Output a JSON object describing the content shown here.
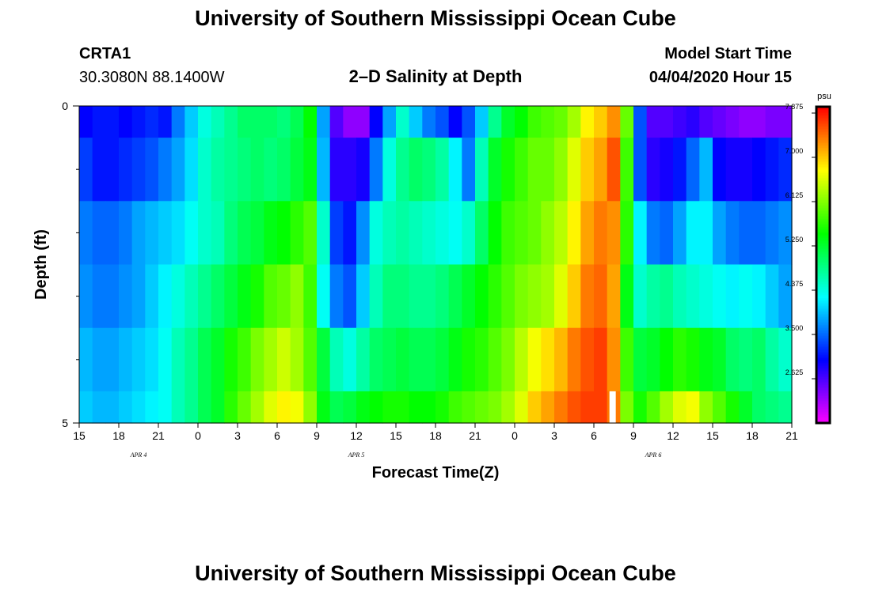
{
  "title": "University of Southern Mississippi Ocean Cube",
  "footer_title": "University of Southern Mississippi Ocean Cube",
  "station": {
    "id": "CRTA1",
    "location": "30.3080N 88.1400W"
  },
  "subtitle": "2–D Salinity at Depth",
  "model": {
    "label": "Model Start Time",
    "value": "04/04/2020 Hour 15"
  },
  "chart_data": {
    "type": "heatmap",
    "title": "2–D Salinity at Depth",
    "xlabel": "Forecast Time(Z)",
    "ylabel": "Depth (ft)",
    "y_range": [
      0,
      5
    ],
    "y_tick_labels": [
      "0",
      "5"
    ],
    "x_range_hours": [
      0,
      54
    ],
    "x_ticks": [
      {
        "h": 0,
        "label": "15"
      },
      {
        "h": 3,
        "label": "18"
      },
      {
        "h": 6,
        "label": "21"
      },
      {
        "h": 9,
        "label": "0"
      },
      {
        "h": 12,
        "label": "3"
      },
      {
        "h": 15,
        "label": "6"
      },
      {
        "h": 18,
        "label": "9"
      },
      {
        "h": 21,
        "label": "12"
      },
      {
        "h": 24,
        "label": "15"
      },
      {
        "h": 27,
        "label": "18"
      },
      {
        "h": 30,
        "label": "21"
      },
      {
        "h": 33,
        "label": "0"
      },
      {
        "h": 36,
        "label": "3"
      },
      {
        "h": 39,
        "label": "6"
      },
      {
        "h": 42,
        "label": "9"
      },
      {
        "h": 45,
        "label": "12"
      },
      {
        "h": 48,
        "label": "15"
      },
      {
        "h": 51,
        "label": "18"
      },
      {
        "h": 54,
        "label": "21"
      }
    ],
    "date_labels": [
      {
        "h": 4.5,
        "label": "APR 4"
      },
      {
        "h": 21,
        "label": "APR 5"
      },
      {
        "h": 43.5,
        "label": "APR 6"
      }
    ],
    "depth_layers": [
      {
        "top": 0.0,
        "bottom": 0.5
      },
      {
        "top": 0.5,
        "bottom": 1.5
      },
      {
        "top": 1.5,
        "bottom": 2.5
      },
      {
        "top": 2.5,
        "bottom": 3.5
      },
      {
        "top": 3.5,
        "bottom": 4.5
      },
      {
        "top": 4.5,
        "bottom": 5.0
      }
    ],
    "time_hours": [
      0,
      1,
      2,
      3,
      4,
      5,
      6,
      7,
      8,
      9,
      10,
      11,
      12,
      13,
      14,
      15,
      16,
      17,
      18,
      19,
      20,
      21,
      22,
      23,
      24,
      25,
      26,
      27,
      28,
      29,
      30,
      31,
      32,
      33,
      34,
      35,
      36,
      37,
      38,
      39,
      40,
      41,
      42,
      43,
      44,
      45,
      46,
      47,
      48,
      49,
      50,
      51,
      52,
      53
    ],
    "salinity": [
      [
        3.0,
        3.1,
        3.1,
        3.0,
        3.1,
        3.2,
        3.1,
        3.6,
        4.0,
        4.4,
        4.6,
        4.8,
        5.0,
        5.0,
        5.0,
        4.9,
        5.1,
        5.5,
        3.8,
        2.6,
        2.3,
        2.3,
        3.0,
        3.8,
        4.5,
        4.0,
        3.6,
        3.4,
        3.0,
        3.4,
        4.0,
        4.8,
        5.3,
        5.5,
        5.8,
        5.9,
        6.0,
        6.3,
        6.8,
        7.0,
        7.3,
        6.0,
        3.4,
        2.6,
        2.6,
        2.7,
        2.8,
        2.6,
        2.5,
        2.4,
        2.3,
        2.3,
        2.4,
        2.4
      ],
      [
        3.3,
        3.1,
        3.1,
        3.2,
        3.3,
        3.4,
        3.6,
        3.8,
        4.1,
        4.5,
        4.7,
        4.8,
        4.9,
        5.0,
        4.9,
        5.0,
        5.2,
        5.4,
        3.9,
        2.8,
        2.8,
        2.9,
        3.6,
        4.4,
        4.8,
        5.0,
        4.9,
        4.7,
        4.2,
        3.6,
        4.6,
        5.3,
        5.6,
        5.8,
        6.0,
        6.0,
        6.2,
        6.6,
        7.0,
        7.2,
        7.6,
        5.8,
        3.4,
        2.8,
        2.9,
        3.1,
        3.5,
        3.9,
        3.0,
        2.9,
        2.9,
        3.0,
        3.1,
        3.2
      ],
      [
        3.6,
        3.5,
        3.5,
        3.6,
        3.8,
        3.9,
        4.0,
        4.1,
        4.3,
        4.5,
        4.6,
        4.9,
        5.1,
        5.2,
        5.4,
        5.5,
        5.7,
        5.9,
        4.5,
        3.3,
        3.1,
        3.7,
        4.4,
        4.6,
        4.7,
        4.6,
        4.5,
        4.4,
        4.3,
        4.5,
        5.0,
        5.5,
        5.8,
        5.9,
        6.0,
        6.2,
        6.4,
        6.8,
        7.2,
        7.4,
        7.3,
        5.7,
        4.2,
        3.6,
        3.5,
        3.8,
        4.2,
        4.2,
        3.8,
        3.6,
        3.5,
        3.5,
        3.6,
        3.7
      ],
      [
        3.7,
        3.6,
        3.6,
        3.7,
        3.8,
        4.0,
        4.2,
        4.4,
        4.6,
        4.8,
        5.0,
        5.2,
        5.4,
        5.6,
        5.9,
        6.0,
        6.2,
        5.8,
        4.3,
        3.6,
        3.4,
        4.0,
        4.6,
        4.9,
        4.9,
        4.8,
        4.8,
        4.9,
        5.1,
        5.3,
        5.5,
        5.7,
        5.9,
        6.1,
        6.2,
        6.3,
        6.6,
        7.0,
        7.4,
        7.5,
        7.2,
        5.4,
        4.5,
        4.7,
        4.8,
        4.6,
        4.5,
        4.4,
        4.3,
        4.2,
        4.3,
        4.2,
        4.0,
        3.8
      ],
      [
        3.9,
        3.8,
        3.8,
        3.9,
        4.0,
        4.1,
        4.3,
        4.6,
        4.8,
        5.1,
        5.3,
        5.6,
        5.8,
        6.1,
        6.3,
        6.5,
        6.3,
        5.9,
        5.2,
        4.6,
        4.4,
        4.7,
        5.0,
        5.1,
        5.2,
        5.1,
        5.1,
        5.2,
        5.4,
        5.6,
        5.7,
        5.9,
        6.1,
        6.4,
        6.7,
        6.9,
        7.1,
        7.4,
        7.6,
        7.7,
        7.3,
        5.8,
        5.2,
        5.3,
        5.5,
        5.7,
        5.6,
        5.4,
        5.3,
        5.0,
        4.9,
        5.0,
        4.7,
        4.5
      ],
      [
        4.0,
        3.9,
        3.9,
        4.0,
        4.1,
        4.2,
        4.3,
        4.6,
        4.8,
        5.1,
        5.3,
        5.7,
        6.0,
        6.3,
        6.6,
        6.8,
        6.7,
        6.2,
        5.4,
        5.1,
        5.2,
        5.4,
        5.5,
        5.6,
        5.6,
        5.5,
        5.5,
        5.6,
        5.8,
        5.9,
        6.0,
        6.1,
        6.3,
        6.6,
        7.0,
        7.2,
        7.4,
        7.6,
        7.7,
        7.7,
        7.4,
        6.1,
        5.6,
        5.9,
        6.3,
        6.6,
        6.7,
        6.2,
        5.9,
        5.6,
        5.3,
        5.0,
        4.9,
        4.8
      ]
    ],
    "missing_cells": [
      {
        "layer": 5,
        "hour": 40
      }
    ],
    "colorbar": {
      "unit": "psu",
      "min": 1.75,
      "max": 8.0,
      "tick_labels": [
        "7.875",
        "7.000",
        "6.125",
        "5.250",
        "4.375",
        "3.500",
        "2.625"
      ],
      "tick_values": [
        7.875,
        7.0,
        6.125,
        5.25,
        4.375,
        3.5,
        2.625
      ]
    }
  }
}
